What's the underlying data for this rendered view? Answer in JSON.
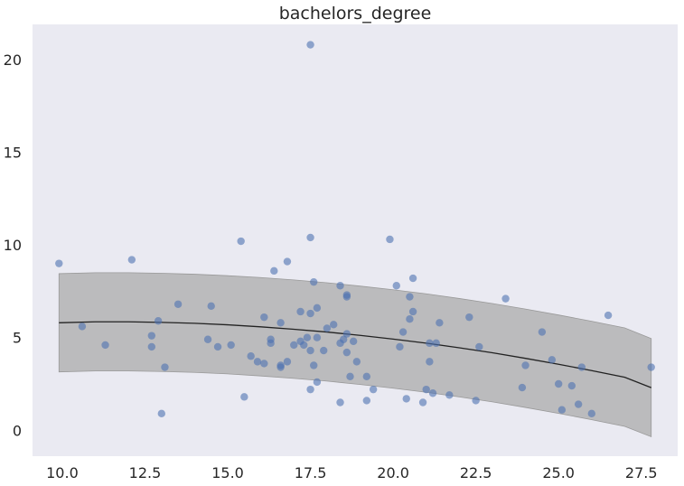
{
  "chart_data": {
    "type": "scatter",
    "title": "bachelors_degree",
    "xlabel": "",
    "ylabel": "",
    "xlim": [
      9.1,
      28.6
    ],
    "ylim": [
      -1.4,
      21.9
    ],
    "xticks": [
      "10.0",
      "12.5",
      "15.0",
      "17.5",
      "20.0",
      "22.5",
      "25.0",
      "27.5"
    ],
    "yticks": [
      "0",
      "5",
      "10",
      "15",
      "20"
    ],
    "grid": false,
    "background_color": "#EAEAF2",
    "points_color": "#4C72B0",
    "band_color": "#A6A6A6",
    "line_color": "#222222",
    "points": [
      {
        "x": 9.9,
        "y": 9.0
      },
      {
        "x": 10.6,
        "y": 5.6
      },
      {
        "x": 11.3,
        "y": 4.6
      },
      {
        "x": 12.1,
        "y": 9.2
      },
      {
        "x": 12.7,
        "y": 5.1
      },
      {
        "x": 12.7,
        "y": 4.5
      },
      {
        "x": 12.9,
        "y": 5.9
      },
      {
        "x": 13.0,
        "y": 0.9
      },
      {
        "x": 13.1,
        "y": 3.4
      },
      {
        "x": 13.5,
        "y": 6.8
      },
      {
        "x": 14.4,
        "y": 4.9
      },
      {
        "x": 14.5,
        "y": 6.7
      },
      {
        "x": 14.7,
        "y": 4.5
      },
      {
        "x": 15.1,
        "y": 4.6
      },
      {
        "x": 15.4,
        "y": 10.2
      },
      {
        "x": 15.5,
        "y": 1.8
      },
      {
        "x": 15.7,
        "y": 4.0
      },
      {
        "x": 15.9,
        "y": 3.7
      },
      {
        "x": 16.1,
        "y": 3.6
      },
      {
        "x": 16.1,
        "y": 6.1
      },
      {
        "x": 16.3,
        "y": 4.9
      },
      {
        "x": 16.3,
        "y": 4.7
      },
      {
        "x": 16.4,
        "y": 8.6
      },
      {
        "x": 16.6,
        "y": 5.8
      },
      {
        "x": 16.6,
        "y": 3.4
      },
      {
        "x": 16.6,
        "y": 3.5
      },
      {
        "x": 16.8,
        "y": 9.1
      },
      {
        "x": 16.8,
        "y": 3.7
      },
      {
        "x": 17.0,
        "y": 4.6
      },
      {
        "x": 17.2,
        "y": 4.8
      },
      {
        "x": 17.2,
        "y": 6.4
      },
      {
        "x": 17.3,
        "y": 4.6
      },
      {
        "x": 17.4,
        "y": 5.0
      },
      {
        "x": 17.5,
        "y": 20.8
      },
      {
        "x": 17.5,
        "y": 10.4
      },
      {
        "x": 17.5,
        "y": 6.3
      },
      {
        "x": 17.5,
        "y": 4.3
      },
      {
        "x": 17.5,
        "y": 2.2
      },
      {
        "x": 17.6,
        "y": 3.5
      },
      {
        "x": 17.6,
        "y": 8.0
      },
      {
        "x": 17.7,
        "y": 6.6
      },
      {
        "x": 17.7,
        "y": 5.0
      },
      {
        "x": 17.7,
        "y": 2.6
      },
      {
        "x": 17.9,
        "y": 4.3
      },
      {
        "x": 18.0,
        "y": 5.5
      },
      {
        "x": 18.2,
        "y": 5.7
      },
      {
        "x": 18.4,
        "y": 7.8
      },
      {
        "x": 18.4,
        "y": 4.7
      },
      {
        "x": 18.4,
        "y": 1.5
      },
      {
        "x": 18.5,
        "y": 4.9
      },
      {
        "x": 18.6,
        "y": 7.2
      },
      {
        "x": 18.6,
        "y": 7.3
      },
      {
        "x": 18.6,
        "y": 5.2
      },
      {
        "x": 18.6,
        "y": 4.2
      },
      {
        "x": 18.7,
        "y": 2.9
      },
      {
        "x": 18.8,
        "y": 4.8
      },
      {
        "x": 18.9,
        "y": 3.7
      },
      {
        "x": 19.2,
        "y": 1.6
      },
      {
        "x": 19.2,
        "y": 2.9
      },
      {
        "x": 19.4,
        "y": 2.2
      },
      {
        "x": 19.9,
        "y": 10.3
      },
      {
        "x": 20.1,
        "y": 7.8
      },
      {
        "x": 20.2,
        "y": 4.5
      },
      {
        "x": 20.3,
        "y": 5.3
      },
      {
        "x": 20.4,
        "y": 1.7
      },
      {
        "x": 20.5,
        "y": 6.0
      },
      {
        "x": 20.5,
        "y": 7.2
      },
      {
        "x": 20.6,
        "y": 8.2
      },
      {
        "x": 20.6,
        "y": 6.4
      },
      {
        "x": 20.9,
        "y": 1.5
      },
      {
        "x": 21.0,
        "y": 2.2
      },
      {
        "x": 21.1,
        "y": 3.7
      },
      {
        "x": 21.1,
        "y": 4.7
      },
      {
        "x": 21.2,
        "y": 2.0
      },
      {
        "x": 21.3,
        "y": 4.7
      },
      {
        "x": 21.4,
        "y": 5.8
      },
      {
        "x": 21.7,
        "y": 1.9
      },
      {
        "x": 22.3,
        "y": 6.1
      },
      {
        "x": 22.5,
        "y": 1.6
      },
      {
        "x": 22.6,
        "y": 4.5
      },
      {
        "x": 23.4,
        "y": 7.1
      },
      {
        "x": 23.9,
        "y": 2.3
      },
      {
        "x": 24.0,
        "y": 3.5
      },
      {
        "x": 24.5,
        "y": 5.3
      },
      {
        "x": 24.8,
        "y": 3.8
      },
      {
        "x": 25.0,
        "y": 2.5
      },
      {
        "x": 25.1,
        "y": 1.1
      },
      {
        "x": 25.4,
        "y": 2.4
      },
      {
        "x": 25.6,
        "y": 1.4
      },
      {
        "x": 25.7,
        "y": 3.4
      },
      {
        "x": 26.0,
        "y": 0.9
      },
      {
        "x": 26.5,
        "y": 6.2
      },
      {
        "x": 27.8,
        "y": 3.4
      }
    ],
    "fit_line": {
      "x": [
        9.9,
        11.0,
        12.0,
        13.0,
        14.0,
        15.0,
        16.0,
        17.0,
        18.0,
        19.0,
        20.0,
        21.0,
        22.0,
        23.0,
        24.0,
        25.0,
        26.0,
        27.0,
        27.8
      ],
      "y": [
        5.8,
        5.85,
        5.85,
        5.82,
        5.77,
        5.69,
        5.58,
        5.45,
        5.3,
        5.12,
        4.92,
        4.7,
        4.45,
        4.18,
        3.88,
        3.56,
        3.22,
        2.86,
        2.3
      ]
    },
    "band_upper": {
      "x": [
        9.9,
        11.0,
        12.0,
        13.0,
        14.0,
        15.0,
        16.0,
        17.0,
        18.0,
        19.0,
        20.0,
        21.0,
        22.0,
        23.0,
        24.0,
        25.0,
        26.0,
        27.0,
        27.8
      ],
      "y": [
        8.45,
        8.5,
        8.5,
        8.47,
        8.42,
        8.34,
        8.24,
        8.11,
        7.96,
        7.78,
        7.58,
        7.36,
        7.11,
        6.84,
        6.54,
        6.22,
        5.88,
        5.52,
        4.95
      ]
    },
    "band_lower": {
      "x": [
        9.9,
        11.0,
        12.0,
        13.0,
        14.0,
        15.0,
        16.0,
        17.0,
        18.0,
        19.0,
        20.0,
        21.0,
        22.0,
        23.0,
        24.0,
        25.0,
        26.0,
        27.0,
        27.8
      ],
      "y": [
        3.15,
        3.2,
        3.2,
        3.17,
        3.12,
        3.04,
        2.93,
        2.8,
        2.65,
        2.47,
        2.27,
        2.05,
        1.8,
        1.53,
        1.23,
        0.91,
        0.57,
        0.21,
        -0.35
      ]
    }
  }
}
